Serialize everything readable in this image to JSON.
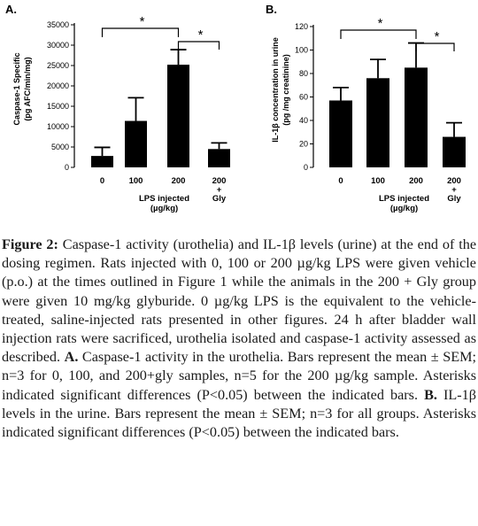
{
  "chart_data": [
    {
      "panel": "A.",
      "type": "bar",
      "ylabel": [
        "Caspase-1 Specific",
        "(pg AFC/min/mg)"
      ],
      "ylim": [
        0,
        35000
      ],
      "yticks": [
        "0",
        "5000",
        "10000",
        "15000",
        "20000",
        "25000",
        "30000",
        "35000"
      ],
      "categories": [
        "0",
        "100",
        "200",
        [
          "200",
          "+",
          "Gly"
        ]
      ],
      "values": [
        2800,
        11400,
        25200,
        4500
      ],
      "errors": [
        2100,
        5700,
        3700,
        1500
      ],
      "xlabel": [
        "LPS injected",
        "(µg/kg)"
      ],
      "significance": [
        {
          "from": 0,
          "to": 2,
          "label": "*"
        },
        {
          "from": 2,
          "to": 3,
          "label": "*"
        }
      ]
    },
    {
      "panel": "B.",
      "type": "bar",
      "ylabel": [
        "IL-1β concentration in urine",
        "(pg /mg creatinine)"
      ],
      "ylim": [
        0,
        120
      ],
      "yticks": [
        "0",
        "20",
        "40",
        "60",
        "80",
        "100",
        "120"
      ],
      "categories": [
        "0",
        "100",
        "200",
        [
          "200",
          "+",
          "Gly"
        ]
      ],
      "values": [
        57,
        76,
        85,
        26
      ],
      "errors": [
        11,
        16,
        21,
        12
      ],
      "xlabel": [
        "LPS injected",
        "(µg/kg)"
      ],
      "significance": [
        {
          "from": 0,
          "to": 2,
          "label": "*"
        },
        {
          "from": 2,
          "to": 3,
          "label": "*"
        }
      ]
    }
  ],
  "caption": {
    "figure_label": "Figure 2:",
    "text_1": " Caspase-1 activity (urothelia) and IL-1β levels (urine) at the end of the dosing regimen. Rats injected with 0, 100 or 200 µg/kg LPS were given vehicle (p.o.) at the times outlined in Figure 1 while the animals in the 200 + Gly group were given 10 mg/kg glyburide. 0 µg/kg LPS is the equivalent to the vehicle-treated, saline-injected rats presented in other figures. 24 h after bladder wall injection rats were sacrificed, urothelia isolated and caspase-1 activity assessed as described. ",
    "label_a": "A.",
    "text_2": " Caspase-1 activity in the urothelia. Bars represent the mean ± SEM; n=3 for 0, 100, and 200+gly samples, n=5 for the 200 µg/kg sample. Asterisks indicated significant differences (P<0.05) between the indicated bars. ",
    "label_b": "B.",
    "text_3": " IL-1β levels in the urine. Bars represent the mean ± SEM; n=3 for all groups. Asterisks indicated significant differences (P<0.05) between the indicated bars."
  }
}
